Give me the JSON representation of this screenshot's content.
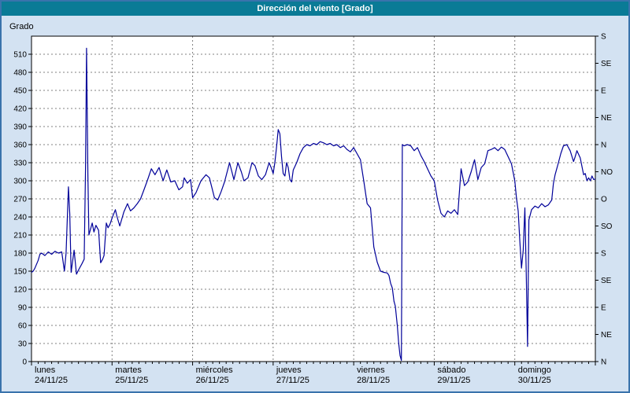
{
  "title": "Dirección del viento [Grado]",
  "colors": {
    "background": "#d3e2f2",
    "frame_border": "#3973ac",
    "titlebar_bg": "#0a7b96",
    "titlebar_text": "#ffffff",
    "plot_bg": "#ffffff",
    "grid": "#808080",
    "axis": "#000000",
    "line": "#000099"
  },
  "chart_data": {
    "type": "line",
    "title": "Dirección del viento [Grado]",
    "ylabel": "Grado",
    "ylim": [
      0,
      540
    ],
    "y_tick_step": 30,
    "y_tick_max_labeled": 510,
    "grid": "dashed",
    "x_hours_total": 168,
    "x_days": [
      {
        "name": "lunes",
        "date": "24/11/25"
      },
      {
        "name": "martes",
        "date": "25/11/25"
      },
      {
        "name": "miércoles",
        "date": "26/11/25"
      },
      {
        "name": "jueves",
        "date": "27/11/25"
      },
      {
        "name": "viernes",
        "date": "28/11/25"
      },
      {
        "name": "sábado",
        "date": "29/11/25"
      },
      {
        "name": "domingo",
        "date": "30/11/25"
      }
    ],
    "right_axis": {
      "step": 45,
      "labels_bottom_to_top": [
        "N",
        "NE",
        "E",
        "SE",
        "S",
        "SO",
        "O",
        "NO",
        "N",
        "NE",
        "E",
        "SE",
        "S"
      ]
    },
    "series": [
      {
        "name": "Dirección del viento",
        "color": "#000099",
        "points": [
          [
            0,
            148
          ],
          [
            0.5,
            150
          ],
          [
            1,
            155
          ],
          [
            2,
            168
          ],
          [
            2.5,
            178
          ],
          [
            3,
            180
          ],
          [
            4,
            176
          ],
          [
            5,
            182
          ],
          [
            6,
            178
          ],
          [
            7,
            183
          ],
          [
            8,
            180
          ],
          [
            9,
            182
          ],
          [
            9.8,
            150
          ],
          [
            10.3,
            180
          ],
          [
            11,
            290
          ],
          [
            11.4,
            245
          ],
          [
            11.8,
            148
          ],
          [
            12.7,
            185
          ],
          [
            13.4,
            145
          ],
          [
            14,
            152
          ],
          [
            15,
            162
          ],
          [
            15.7,
            170
          ],
          [
            16.1,
            320
          ],
          [
            16.4,
            520
          ],
          [
            16.8,
            310
          ],
          [
            17.1,
            210
          ],
          [
            18.1,
            230
          ],
          [
            18.6,
            215
          ],
          [
            19.2,
            226
          ],
          [
            20,
            218
          ],
          [
            20.6,
            164
          ],
          [
            21.2,
            170
          ],
          [
            21.6,
            176
          ],
          [
            22.3,
            230
          ],
          [
            22.8,
            222
          ],
          [
            23.4,
            228
          ],
          [
            24,
            238
          ],
          [
            25,
            252
          ],
          [
            25.5,
            240
          ],
          [
            26.3,
            225
          ],
          [
            27.5,
            248
          ],
          [
            28.6,
            262
          ],
          [
            29.5,
            250
          ],
          [
            30.5,
            255
          ],
          [
            31.5,
            262
          ],
          [
            32.5,
            270
          ],
          [
            33.5,
            285
          ],
          [
            34.5,
            300
          ],
          [
            35.7,
            320
          ],
          [
            36.8,
            310
          ],
          [
            38,
            322
          ],
          [
            39.2,
            300
          ],
          [
            40.3,
            318
          ],
          [
            41.5,
            298
          ],
          [
            42.7,
            300
          ],
          [
            43.9,
            285
          ],
          [
            45,
            290
          ],
          [
            45.5,
            305
          ],
          [
            46.4,
            296
          ],
          [
            47.4,
            302
          ],
          [
            48,
            272
          ],
          [
            49,
            280
          ],
          [
            50.5,
            300
          ],
          [
            52,
            310
          ],
          [
            53,
            305
          ],
          [
            54.5,
            272
          ],
          [
            55.5,
            268
          ],
          [
            56.5,
            282
          ],
          [
            57.5,
            298
          ],
          [
            59,
            330
          ],
          [
            60.3,
            302
          ],
          [
            61.5,
            330
          ],
          [
            62.5,
            315
          ],
          [
            63.3,
            300
          ],
          [
            64.5,
            305
          ],
          [
            65.7,
            330
          ],
          [
            66.6,
            325
          ],
          [
            67.6,
            308
          ],
          [
            68.6,
            302
          ],
          [
            69.7,
            310
          ],
          [
            70.8,
            330
          ],
          [
            71.4,
            322
          ],
          [
            72,
            312
          ],
          [
            72.5,
            330
          ],
          [
            73,
            355
          ],
          [
            73.5,
            385
          ],
          [
            74,
            378
          ],
          [
            74.5,
            340
          ],
          [
            75,
            312
          ],
          [
            75.5,
            308
          ],
          [
            76,
            330
          ],
          [
            76.5,
            322
          ],
          [
            77,
            302
          ],
          [
            77.5,
            298
          ],
          [
            78,
            318
          ],
          [
            79,
            330
          ],
          [
            80,
            345
          ],
          [
            81,
            355
          ],
          [
            82,
            360
          ],
          [
            83,
            358
          ],
          [
            84,
            362
          ],
          [
            85,
            360
          ],
          [
            86,
            365
          ],
          [
            87,
            363
          ],
          [
            88,
            360
          ],
          [
            89,
            362
          ],
          [
            90,
            358
          ],
          [
            91,
            360
          ],
          [
            92,
            355
          ],
          [
            93,
            358
          ],
          [
            94,
            352
          ],
          [
            95,
            348
          ],
          [
            96,
            355
          ],
          [
            97,
            345
          ],
          [
            98,
            335
          ],
          [
            99,
            300
          ],
          [
            100,
            262
          ],
          [
            101,
            255
          ],
          [
            102,
            190
          ],
          [
            103,
            165
          ],
          [
            104,
            150
          ],
          [
            105,
            148
          ],
          [
            106,
            147
          ],
          [
            106.5,
            143
          ],
          [
            107,
            130
          ],
          [
            107.5,
            122
          ],
          [
            108,
            100
          ],
          [
            108.4,
            92
          ],
          [
            109,
            60
          ],
          [
            109.4,
            30
          ],
          [
            109.8,
            10
          ],
          [
            110.2,
            2
          ],
          [
            110.5,
            360
          ],
          [
            111,
            358
          ],
          [
            112,
            360
          ],
          [
            113,
            358
          ],
          [
            114,
            350
          ],
          [
            115,
            355
          ],
          [
            116,
            342
          ],
          [
            117,
            332
          ],
          [
            118,
            320
          ],
          [
            119,
            308
          ],
          [
            120,
            300
          ],
          [
            121,
            268
          ],
          [
            122,
            246
          ],
          [
            123,
            240
          ],
          [
            124,
            250
          ],
          [
            125,
            246
          ],
          [
            126,
            252
          ],
          [
            127,
            244
          ],
          [
            128,
            320
          ],
          [
            129,
            292
          ],
          [
            130,
            298
          ],
          [
            131,
            315
          ],
          [
            132,
            335
          ],
          [
            133,
            302
          ],
          [
            134,
            322
          ],
          [
            135,
            328
          ],
          [
            136,
            350
          ],
          [
            137,
            352
          ],
          [
            138,
            355
          ],
          [
            139,
            350
          ],
          [
            140,
            356
          ],
          [
            141,
            352
          ],
          [
            142,
            340
          ],
          [
            143,
            328
          ],
          [
            144,
            300
          ],
          [
            144.5,
            272
          ],
          [
            145,
            250
          ],
          [
            145.5,
            200
          ],
          [
            146,
            155
          ],
          [
            146.5,
            185
          ],
          [
            147,
            255
          ],
          [
            147.4,
            150
          ],
          [
            147.8,
            25
          ],
          [
            148.2,
            235
          ],
          [
            149,
            252
          ],
          [
            150,
            258
          ],
          [
            151,
            255
          ],
          [
            152,
            262
          ],
          [
            153,
            257
          ],
          [
            154,
            260
          ],
          [
            155,
            268
          ],
          [
            155.5,
            295
          ],
          [
            156,
            310
          ],
          [
            157,
            330
          ],
          [
            157.7,
            345
          ],
          [
            158.5,
            358
          ],
          [
            159.5,
            360
          ],
          [
            160.5,
            350
          ],
          [
            161.5,
            332
          ],
          [
            162,
            340
          ],
          [
            162.5,
            350
          ],
          [
            163.5,
            338
          ],
          [
            164.5,
            310
          ],
          [
            165,
            312
          ],
          [
            165.5,
            300
          ],
          [
            166,
            305
          ],
          [
            166.5,
            300
          ],
          [
            167,
            308
          ],
          [
            167.5,
            302
          ],
          [
            168,
            303
          ]
        ]
      }
    ]
  }
}
